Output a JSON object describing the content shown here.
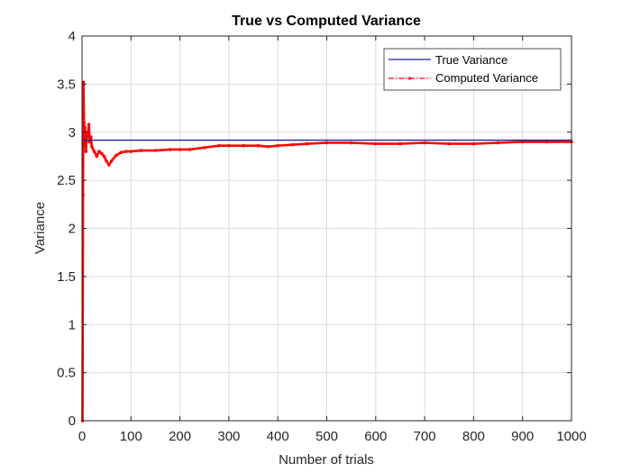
{
  "chart_data": {
    "type": "line",
    "title": "True vs Computed Variance",
    "xlabel": "Number of trials",
    "ylabel": "Variance",
    "xlim": [
      0,
      1000
    ],
    "ylim": [
      0,
      4
    ],
    "xticks": [
      "0",
      "100",
      "200",
      "300",
      "400",
      "500",
      "600",
      "700",
      "800",
      "900",
      "1000"
    ],
    "yticks": [
      "0",
      "0.5",
      "1",
      "1.5",
      "2",
      "2.5",
      "3",
      "3.5",
      "4"
    ],
    "grid": true,
    "legend_position": "top-right",
    "series": [
      {
        "name": "True Variance",
        "color": "#1f1f9f",
        "style": "solid",
        "x": [
          0,
          1000
        ],
        "y": [
          2.917,
          2.917
        ]
      },
      {
        "name": "Computed Variance",
        "color": "#ff0000",
        "style": "dash-dot with point markers",
        "x": [
          1,
          2,
          3,
          4,
          5,
          6,
          7,
          8,
          9,
          10,
          12,
          14,
          16,
          18,
          20,
          25,
          30,
          35,
          40,
          45,
          50,
          55,
          60,
          70,
          80,
          90,
          100,
          120,
          150,
          180,
          200,
          220,
          250,
          280,
          300,
          330,
          360,
          380,
          400,
          430,
          460,
          500,
          550,
          600,
          650,
          700,
          750,
          800,
          850,
          900,
          950,
          1000
        ],
        "y": [
          0.0,
          2.35,
          3.52,
          3.1,
          2.85,
          3.05,
          2.95,
          2.8,
          2.9,
          3.0,
          2.95,
          3.08,
          2.9,
          2.95,
          2.85,
          2.8,
          2.75,
          2.8,
          2.78,
          2.75,
          2.7,
          2.66,
          2.7,
          2.76,
          2.79,
          2.8,
          2.8,
          2.81,
          2.81,
          2.82,
          2.82,
          2.82,
          2.84,
          2.86,
          2.86,
          2.86,
          2.86,
          2.85,
          2.86,
          2.87,
          2.88,
          2.89,
          2.89,
          2.88,
          2.88,
          2.89,
          2.88,
          2.88,
          2.89,
          2.9,
          2.9,
          2.9
        ]
      }
    ]
  }
}
